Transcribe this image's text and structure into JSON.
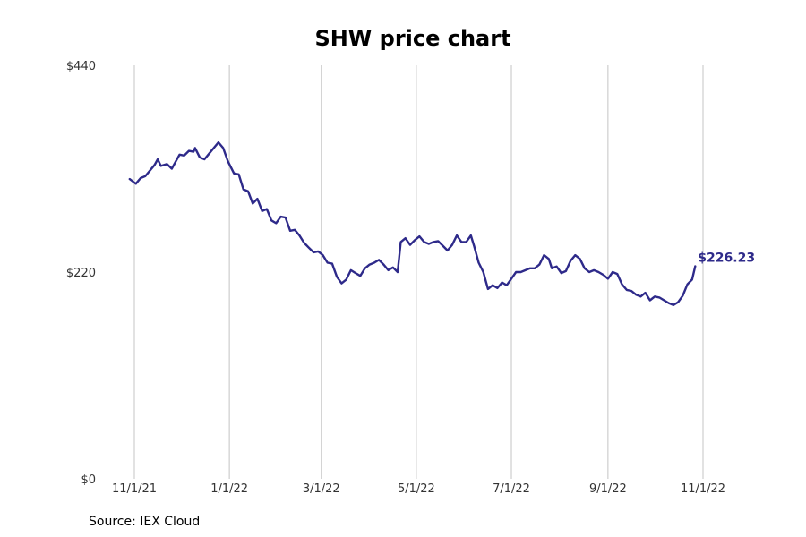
{
  "chart_data": {
    "type": "line",
    "title": "SHW price chart",
    "source": "Source: IEX Cloud",
    "xlabel": "",
    "ylabel": "",
    "ylim": [
      0,
      440
    ],
    "y_ticks": [
      {
        "value": 0,
        "label": "$0"
      },
      {
        "value": 220,
        "label": "$220"
      },
      {
        "value": 440,
        "label": "$440"
      }
    ],
    "x_ticks": [
      {
        "date": "2021-11-01",
        "label": "11/1/21"
      },
      {
        "date": "2022-01-01",
        "label": "1/1/22"
      },
      {
        "date": "2022-03-01",
        "label": "3/1/22"
      },
      {
        "date": "2022-05-01",
        "label": "5/1/22"
      },
      {
        "date": "2022-07-01",
        "label": "7/1/22"
      },
      {
        "date": "2022-09-01",
        "label": "9/1/22"
      },
      {
        "date": "2022-11-01",
        "label": "11/1/22"
      }
    ],
    "xlim": [
      "2021-10-29",
      "2022-11-01"
    ],
    "grid": "vertical",
    "line_color": "#2e2a8a",
    "last_value_label": "$226.23",
    "series": [
      {
        "points": [
          [
            "2021-10-29",
            319
          ],
          [
            "2021-11-02",
            314
          ],
          [
            "2021-11-05",
            320
          ],
          [
            "2021-11-08",
            322
          ],
          [
            "2021-11-11",
            328
          ],
          [
            "2021-11-14",
            334
          ],
          [
            "2021-11-16",
            340
          ],
          [
            "2021-11-18",
            333
          ],
          [
            "2021-11-22",
            335
          ],
          [
            "2021-11-25",
            330
          ],
          [
            "2021-11-28",
            339
          ],
          [
            "2021-11-30",
            345
          ],
          [
            "2021-12-03",
            344
          ],
          [
            "2021-12-06",
            349
          ],
          [
            "2021-12-09",
            348
          ],
          [
            "2021-12-10",
            352
          ],
          [
            "2021-12-13",
            342
          ],
          [
            "2021-12-16",
            340
          ],
          [
            "2021-12-19",
            346
          ],
          [
            "2021-12-22",
            352
          ],
          [
            "2021-12-25",
            358
          ],
          [
            "2021-12-28",
            352
          ],
          [
            "2021-12-31",
            338
          ],
          [
            "2022-01-04",
            325
          ],
          [
            "2022-01-07",
            324
          ],
          [
            "2022-01-10",
            308
          ],
          [
            "2022-01-13",
            306
          ],
          [
            "2022-01-16",
            293
          ],
          [
            "2022-01-19",
            298
          ],
          [
            "2022-01-22",
            285
          ],
          [
            "2022-01-25",
            287
          ],
          [
            "2022-01-28",
            275
          ],
          [
            "2022-01-31",
            272
          ],
          [
            "2022-02-03",
            279
          ],
          [
            "2022-02-06",
            278
          ],
          [
            "2022-02-09",
            264
          ],
          [
            "2022-02-12",
            265
          ],
          [
            "2022-02-15",
            259
          ],
          [
            "2022-02-18",
            251
          ],
          [
            "2022-02-21",
            246
          ],
          [
            "2022-02-24",
            241
          ],
          [
            "2022-02-27",
            242
          ],
          [
            "2022-03-02",
            238
          ],
          [
            "2022-03-05",
            230
          ],
          [
            "2022-03-08",
            229
          ],
          [
            "2022-03-11",
            215
          ],
          [
            "2022-03-14",
            208
          ],
          [
            "2022-03-17",
            212
          ],
          [
            "2022-03-20",
            222
          ],
          [
            "2022-03-23",
            219
          ],
          [
            "2022-03-26",
            216
          ],
          [
            "2022-03-29",
            224
          ],
          [
            "2022-04-01",
            228
          ],
          [
            "2022-04-04",
            230
          ],
          [
            "2022-04-07",
            233
          ],
          [
            "2022-04-10",
            228
          ],
          [
            "2022-04-13",
            222
          ],
          [
            "2022-04-16",
            225
          ],
          [
            "2022-04-19",
            220
          ],
          [
            "2022-04-21",
            252
          ],
          [
            "2022-04-24",
            256
          ],
          [
            "2022-04-27",
            249
          ],
          [
            "2022-04-30",
            254
          ],
          [
            "2022-05-03",
            258
          ],
          [
            "2022-05-06",
            252
          ],
          [
            "2022-05-09",
            250
          ],
          [
            "2022-05-12",
            252
          ],
          [
            "2022-05-15",
            253
          ],
          [
            "2022-05-18",
            248
          ],
          [
            "2022-05-21",
            243
          ],
          [
            "2022-05-24",
            249
          ],
          [
            "2022-05-27",
            259
          ],
          [
            "2022-05-30",
            252
          ],
          [
            "2022-06-02",
            252
          ],
          [
            "2022-06-05",
            259
          ],
          [
            "2022-06-07",
            248
          ],
          [
            "2022-06-10",
            230
          ],
          [
            "2022-06-13",
            220
          ],
          [
            "2022-06-16",
            202
          ],
          [
            "2022-06-19",
            206
          ],
          [
            "2022-06-22",
            203
          ],
          [
            "2022-06-25",
            209
          ],
          [
            "2022-06-28",
            206
          ],
          [
            "2022-07-01",
            213
          ],
          [
            "2022-07-04",
            220
          ],
          [
            "2022-07-07",
            220
          ],
          [
            "2022-07-10",
            222
          ],
          [
            "2022-07-13",
            224
          ],
          [
            "2022-07-16",
            224
          ],
          [
            "2022-07-19",
            228
          ],
          [
            "2022-07-22",
            238
          ],
          [
            "2022-07-25",
            234
          ],
          [
            "2022-07-27",
            224
          ],
          [
            "2022-07-30",
            226
          ],
          [
            "2022-08-02",
            219
          ],
          [
            "2022-08-05",
            221
          ],
          [
            "2022-08-08",
            232
          ],
          [
            "2022-08-11",
            238
          ],
          [
            "2022-08-14",
            234
          ],
          [
            "2022-08-17",
            224
          ],
          [
            "2022-08-20",
            220
          ],
          [
            "2022-08-23",
            222
          ],
          [
            "2022-08-26",
            220
          ],
          [
            "2022-08-29",
            217
          ],
          [
            "2022-09-01",
            213
          ],
          [
            "2022-09-04",
            220
          ],
          [
            "2022-09-07",
            218
          ],
          [
            "2022-09-10",
            207
          ],
          [
            "2022-09-13",
            201
          ],
          [
            "2022-09-16",
            200
          ],
          [
            "2022-09-19",
            196
          ],
          [
            "2022-09-22",
            194
          ],
          [
            "2022-09-25",
            198
          ],
          [
            "2022-09-28",
            190
          ],
          [
            "2022-10-01",
            194
          ],
          [
            "2022-10-04",
            193
          ],
          [
            "2022-10-07",
            190
          ],
          [
            "2022-10-10",
            187
          ],
          [
            "2022-10-13",
            185
          ],
          [
            "2022-10-16",
            188
          ],
          [
            "2022-10-19",
            195
          ],
          [
            "2022-10-22",
            207
          ],
          [
            "2022-10-25",
            212
          ],
          [
            "2022-10-27",
            226.23
          ]
        ]
      }
    ]
  }
}
